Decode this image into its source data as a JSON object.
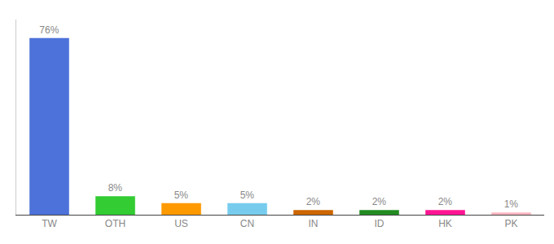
{
  "chart_data": {
    "type": "bar",
    "categories": [
      "TW",
      "OTH",
      "US",
      "CN",
      "IN",
      "ID",
      "HK",
      "PK"
    ],
    "values": [
      76,
      8,
      5,
      5,
      2,
      2,
      2,
      1
    ],
    "value_labels": [
      "76%",
      "8%",
      "5%",
      "5%",
      "2%",
      "2%",
      "2%",
      "1%"
    ],
    "colors": [
      "#4D72D9",
      "#33CC33",
      "#FF9900",
      "#77CCEE",
      "#CC6600",
      "#228B22",
      "#FF1493",
      "#FFB6C1"
    ],
    "ylim": [
      0,
      84
    ],
    "grid": false,
    "tick_labels": "x",
    "data_labels": true
  }
}
